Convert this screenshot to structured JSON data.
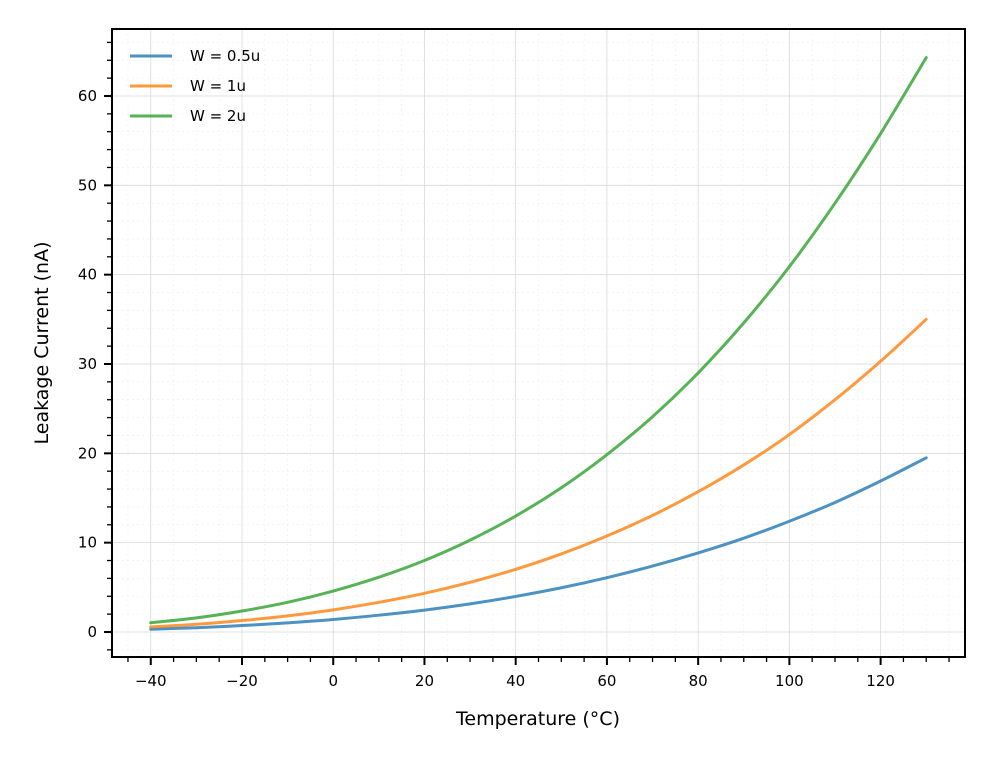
{
  "chart_data": {
    "type": "line",
    "title": "",
    "xlabel": "Temperature (°C)",
    "ylabel": "Leakage Current (nA)",
    "xlim": [
      -48.5,
      138.5
    ],
    "ylim": [
      -2.8,
      67.5
    ],
    "x_ticks": [
      -40,
      -20,
      0,
      20,
      40,
      60,
      80,
      100,
      120
    ],
    "x_tick_labels": [
      "−40",
      "−20",
      "0",
      "20",
      "40",
      "60",
      "80",
      "100",
      "120"
    ],
    "y_ticks": [
      0,
      10,
      20,
      30,
      40,
      50,
      60
    ],
    "y_tick_labels": [
      "0",
      "10",
      "20",
      "30",
      "40",
      "50",
      "60"
    ],
    "grid": true,
    "legend_position": "top-left",
    "x": [
      -40,
      -30,
      -20,
      -10,
      0,
      10,
      20,
      30,
      40,
      50,
      60,
      70,
      80,
      90,
      100,
      110,
      120,
      130
    ],
    "series": [
      {
        "name": "W = 0.5u",
        "color": "#1f77b4",
        "values": [
          0.31,
          0.48,
          0.72,
          1.02,
          1.4,
          1.88,
          2.45,
          3.15,
          3.98,
          4.95,
          6.08,
          7.38,
          8.85,
          10.5,
          12.4,
          14.5,
          16.9,
          19.5
        ]
      },
      {
        "name": "W = 1u",
        "color": "#ff7f0e",
        "values": [
          0.56,
          0.86,
          1.28,
          1.8,
          2.48,
          3.32,
          4.33,
          5.56,
          7.02,
          8.74,
          10.75,
          13.05,
          15.7,
          18.7,
          22.1,
          26.0,
          30.3,
          35.0
        ]
      },
      {
        "name": "W = 2u",
        "color": "#2ca02c",
        "values": [
          1.03,
          1.58,
          2.35,
          3.32,
          4.58,
          6.13,
          8.0,
          10.28,
          12.98,
          16.15,
          19.85,
          24.1,
          29.0,
          34.6,
          40.9,
          48.0,
          55.8,
          64.3
        ]
      }
    ]
  }
}
